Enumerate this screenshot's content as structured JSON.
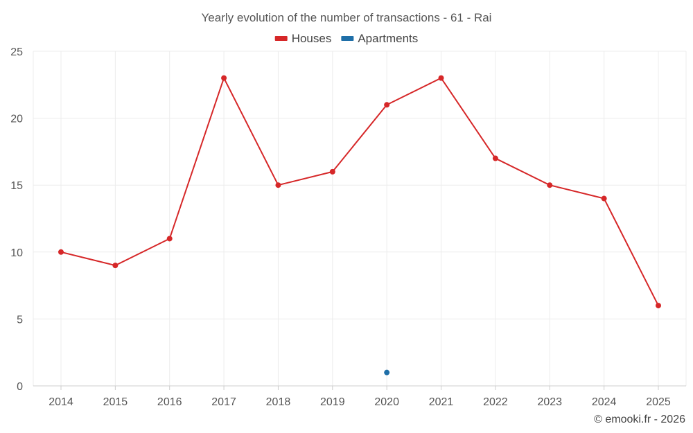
{
  "chart_data": {
    "type": "line",
    "title": "Yearly evolution of the number of transactions - 61 - Rai",
    "categories": [
      "2014",
      "2015",
      "2016",
      "2017",
      "2018",
      "2019",
      "2020",
      "2021",
      "2022",
      "2023",
      "2024",
      "2025"
    ],
    "series": [
      {
        "name": "Houses",
        "color": "#d62728",
        "values": [
          10,
          9,
          11,
          23,
          15,
          16,
          21,
          23,
          17,
          15,
          14,
          6
        ]
      },
      {
        "name": "Apartments",
        "color": "#1f6fa8",
        "values": [
          null,
          null,
          null,
          null,
          null,
          null,
          1,
          null,
          null,
          null,
          null,
          null
        ]
      }
    ],
    "ylim": [
      0,
      25
    ],
    "yticks": [
      "0",
      "5",
      "10",
      "15",
      "20",
      "25"
    ],
    "xlabel": "",
    "ylabel": "",
    "grid": true,
    "legend": "top-center"
  },
  "credit": "© emooki.fr - 2026"
}
